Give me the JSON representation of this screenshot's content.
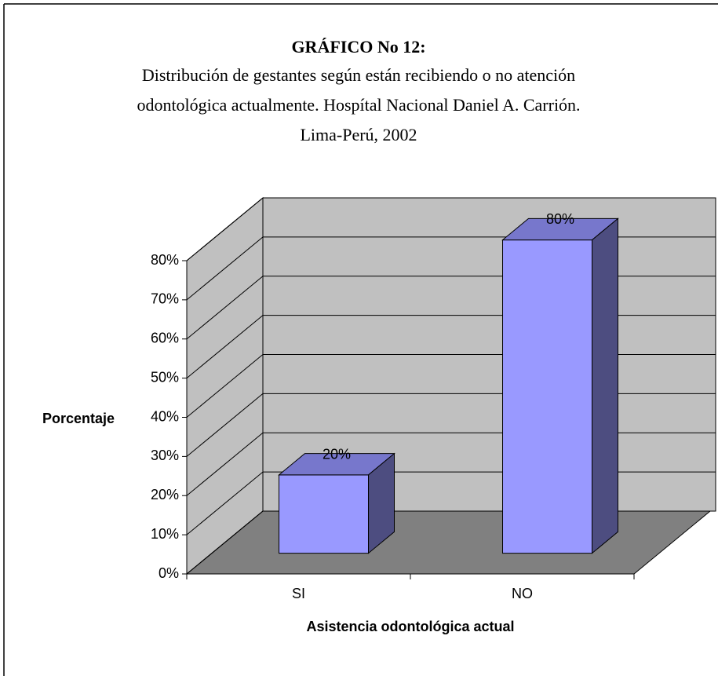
{
  "chart_data": {
    "type": "bar3d",
    "title": "GRÁFICO No 12:",
    "subtitle": [
      "Distribución de gestantes según están recibiendo o no atención",
      "odontológica actualmente. Hospítal Nacional Daniel A. Carrión.",
      "Lima-Perú, 2002"
    ],
    "ylabel": "Porcentaje",
    "xlabel": "Asistencia odontológica actual",
    "categories": [
      "SI",
      "NO"
    ],
    "values": [
      20,
      80
    ],
    "value_labels": [
      "20%",
      "80%"
    ],
    "color": "#9999ff",
    "ylim": [
      0,
      80
    ],
    "yticks": [
      {
        "value": 0,
        "label": "0%"
      },
      {
        "value": 10,
        "label": "10%"
      },
      {
        "value": 20,
        "label": "20%"
      },
      {
        "value": 30,
        "label": "30%"
      },
      {
        "value": 40,
        "label": "40%"
      },
      {
        "value": 50,
        "label": "50%"
      },
      {
        "value": 60,
        "label": "60%"
      },
      {
        "value": 70,
        "label": "70%"
      },
      {
        "value": 80,
        "label": "80%"
      }
    ],
    "grid": true
  }
}
